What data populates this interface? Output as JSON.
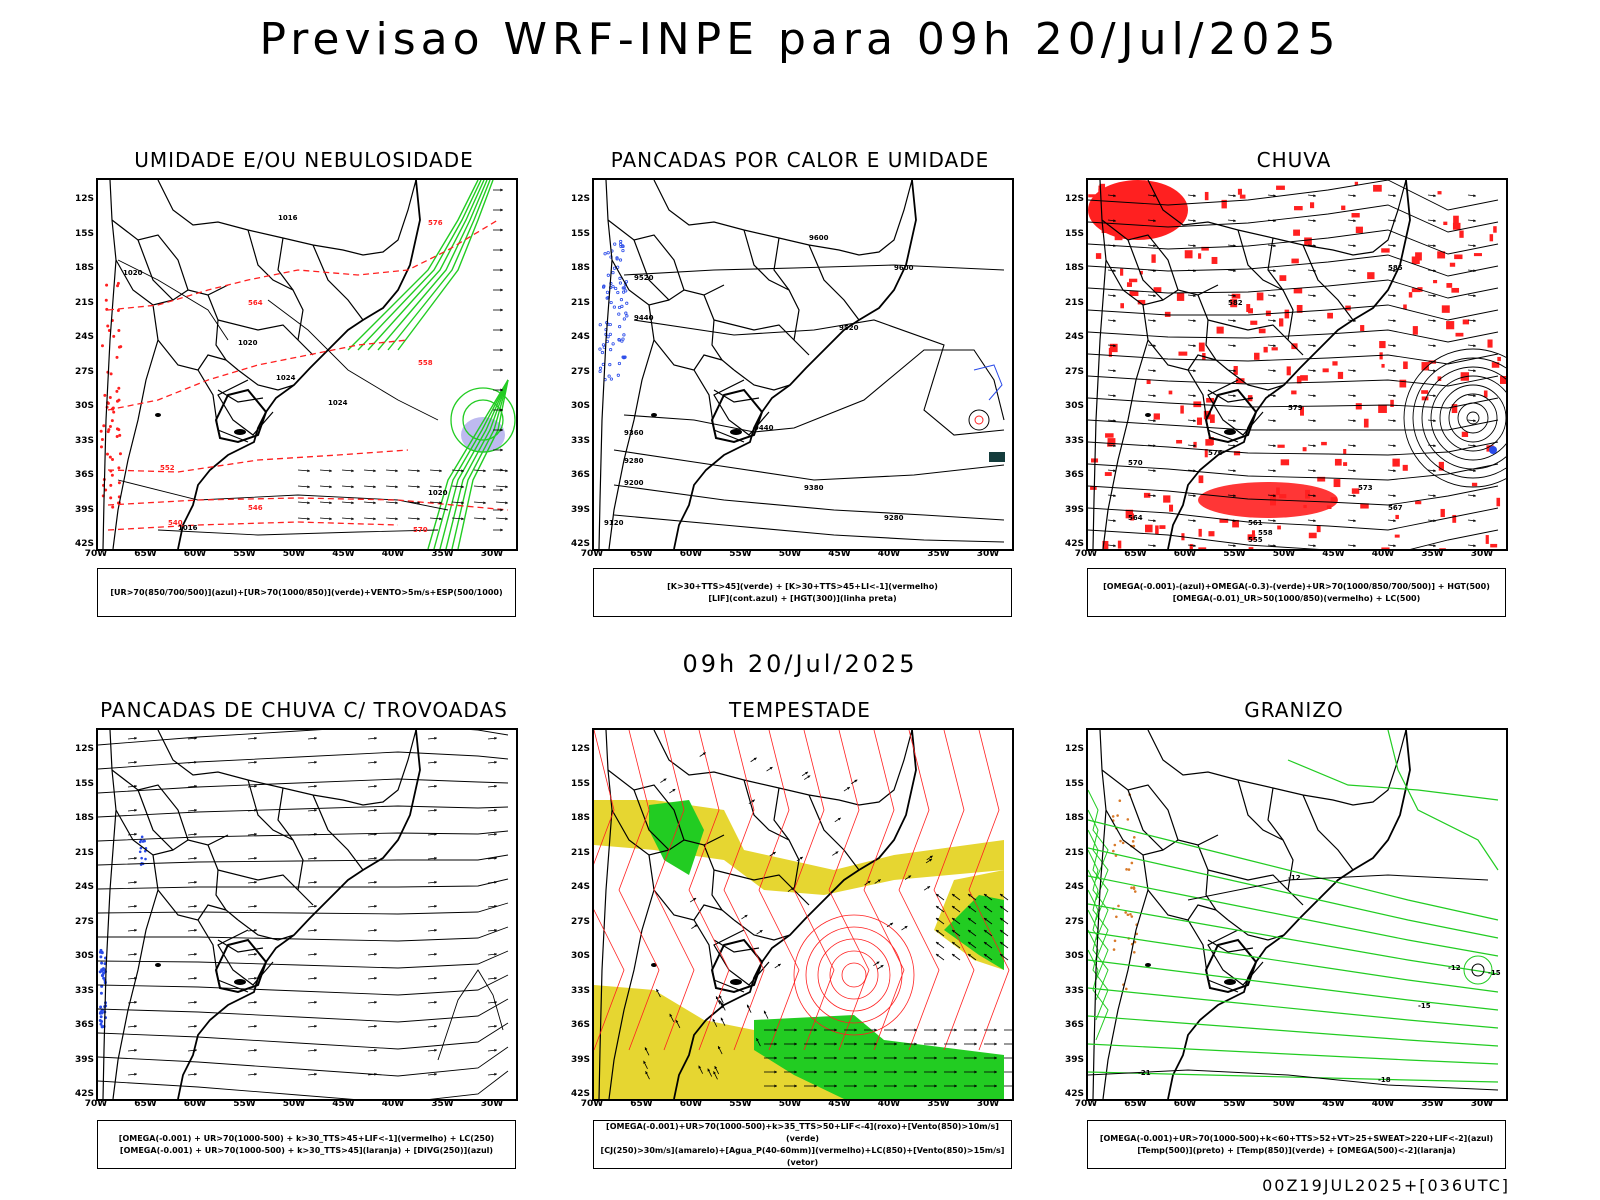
{
  "main_title": "Previsao WRF-INPE  para 09h 20/Jul/2025",
  "mid_title": "09h 20/Jul/2025",
  "footer": "00Z19JUL2025+[036UTC]",
  "lat_labels": [
    "12S",
    "15S",
    "18S",
    "21S",
    "24S",
    "27S",
    "30S",
    "33S",
    "36S",
    "39S",
    "42S"
  ],
  "lon_labels": [
    "70W",
    "65W",
    "60W",
    "55W",
    "50W",
    "45W",
    "40W",
    "35W",
    "30W"
  ],
  "colors": {
    "red": "#ff2020",
    "green": "#22cc22",
    "blue": "#2a4be8",
    "yellow": "#e6d631",
    "lavender": "#b7b3ee",
    "black": "#000000"
  },
  "panels": [
    {
      "id": "umidade",
      "title": "UMIDADE E/OU NEBULOSIDADE",
      "legend": [
        "[UR>70(850/700/500)](azul)+[UR>70(1000/850)](verde)+VENTO>5m/s+ESP(500/1000)"
      ],
      "contour_labels": [
        "1016",
        "1020",
        "1020",
        "1024",
        "1024",
        "1020",
        "1016",
        "570",
        "576",
        "564",
        "558",
        "552",
        "546",
        "540"
      ]
    },
    {
      "id": "pancadas_calor",
      "title": "PANCADAS POR CALOR E UMIDADE",
      "legend": [
        "[K>30+TTS>45](verde) + [K>30+TTS>45+LI<-1](vermelho)",
        "[LIF](cont.azul) + [HGT(300)](linha preta)"
      ],
      "contour_labels": [
        "9600",
        "9520",
        "9440",
        "9360",
        "9280",
        "9200",
        "9120",
        "9600",
        "9520",
        "9440",
        "9380",
        "9280"
      ]
    },
    {
      "id": "chuva",
      "title": "CHUVA",
      "legend": [
        "[OMEGA(-0.001)-(azul)+OMEGA(-0.3)-(verde)+UR>70(1000/850/700/500)] + HGT(500)",
        "[OMEGA(-0.01)_UR>50(1000/850)(vermelho) + LC(500)"
      ],
      "contour_labels": [
        "585",
        "582",
        "579",
        "576",
        "573",
        "570",
        "567",
        "564",
        "561",
        "558",
        "555"
      ]
    },
    {
      "id": "trovoadas",
      "title": "PANCADAS DE CHUVA C/ TROVOADAS",
      "legend": [
        "[OMEGA(-0.001) + UR>70(1000-500) + k>30_TTS>45+LIF<-1](vermelho) + LC(250)",
        "[OMEGA(-0.001) + UR>70(1000-500) + k>30_TTS>45](laranja) + [DIVG(250)](azul)"
      ],
      "contour_labels": []
    },
    {
      "id": "tempestade",
      "title": "TEMPESTADE",
      "legend": [
        "[OMEGA(-0.001)+UR>70(1000-500)+k>35_TTS>50+LIF<-4](roxo)+[Vento(850)>10m/s](verde)",
        "[CJ(250)>30m/s](amarelo)+[Agua_P(40-60mm)](vermelho)+LC(850)+[Vento(850)>15m/s](vetor)"
      ],
      "contour_labels": []
    },
    {
      "id": "granizo",
      "title": "GRANIZO",
      "legend": [
        "[OMEGA(-0.001)+UR>70(1000-500)+k<60+TTS>52+VT>25+SWEAT>220+LIF<-2](azul)",
        "[Temp(500)](preto) + [Temp(850)](verde) + [OMEGA(500)<-2](laranja)"
      ],
      "contour_labels": [
        "-12",
        "-12",
        "-15",
        "-18",
        "-21",
        "-15"
      ]
    }
  ]
}
